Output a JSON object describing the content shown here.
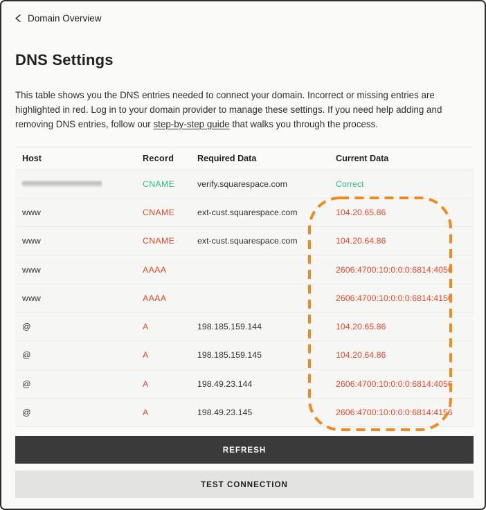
{
  "colors": {
    "accent_orange": "#F08A1D",
    "error_red": "#E2492E",
    "success_green": "#2EBE88",
    "dark_button_bg": "#3A3A3A",
    "light_button_bg": "#E3E3E2"
  },
  "header": {
    "back_label": "Domain Overview",
    "title": "DNS Settings"
  },
  "description": {
    "text_before_link": "This table shows you the DNS entries needed to connect your domain. Incorrect or missing entries are highlighted in red. Log in to your domain provider to manage these settings. If you need help adding and removing DNS entries, follow our ",
    "link_text": "step-by-step guide",
    "text_after_link": " that walks you through the process."
  },
  "table": {
    "columns": {
      "host": "Host",
      "record": "Record",
      "required": "Required Data",
      "current": "Current Data"
    },
    "rows": [
      {
        "host": "",
        "host_redacted": true,
        "record": "CNAME",
        "record_status": "ok",
        "required": "verify.squarespace.com",
        "current": "Correct",
        "current_status": "ok"
      },
      {
        "host": "www",
        "host_redacted": false,
        "record": "CNAME",
        "record_status": "error",
        "required": "ext-cust.squarespace.com",
        "current": "104.20.65.86",
        "current_status": "error"
      },
      {
        "host": "www",
        "host_redacted": false,
        "record": "CNAME",
        "record_status": "error",
        "required": "ext-cust.squarespace.com",
        "current": "104.20.64.86",
        "current_status": "error"
      },
      {
        "host": "www",
        "host_redacted": false,
        "record": "AAAA",
        "record_status": "error",
        "required": "",
        "current": "2606:4700:10:0:0:0:6814:4056",
        "current_status": "error"
      },
      {
        "host": "www",
        "host_redacted": false,
        "record": "AAAA",
        "record_status": "error",
        "required": "",
        "current": "2606:4700:10:0:0:0:6814:4156",
        "current_status": "error"
      },
      {
        "host": "@",
        "host_redacted": false,
        "record": "A",
        "record_status": "error",
        "required": "198.185.159.144",
        "current": "104.20.65.86",
        "current_status": "error"
      },
      {
        "host": "@",
        "host_redacted": false,
        "record": "A",
        "record_status": "error",
        "required": "198.185.159.145",
        "current": "104.20.64.86",
        "current_status": "error"
      },
      {
        "host": "@",
        "host_redacted": false,
        "record": "A",
        "record_status": "error",
        "required": "198.49.23.144",
        "current": "2606:4700:10:0:0:0:6814:4056",
        "current_status": "error"
      },
      {
        "host": "@",
        "host_redacted": false,
        "record": "A",
        "record_status": "error",
        "required": "198.49.23.145",
        "current": "2606:4700:10:0:0:0:6814:4156",
        "current_status": "error"
      }
    ]
  },
  "buttons": {
    "refresh": "REFRESH",
    "test_connection": "TEST CONNECTION"
  }
}
